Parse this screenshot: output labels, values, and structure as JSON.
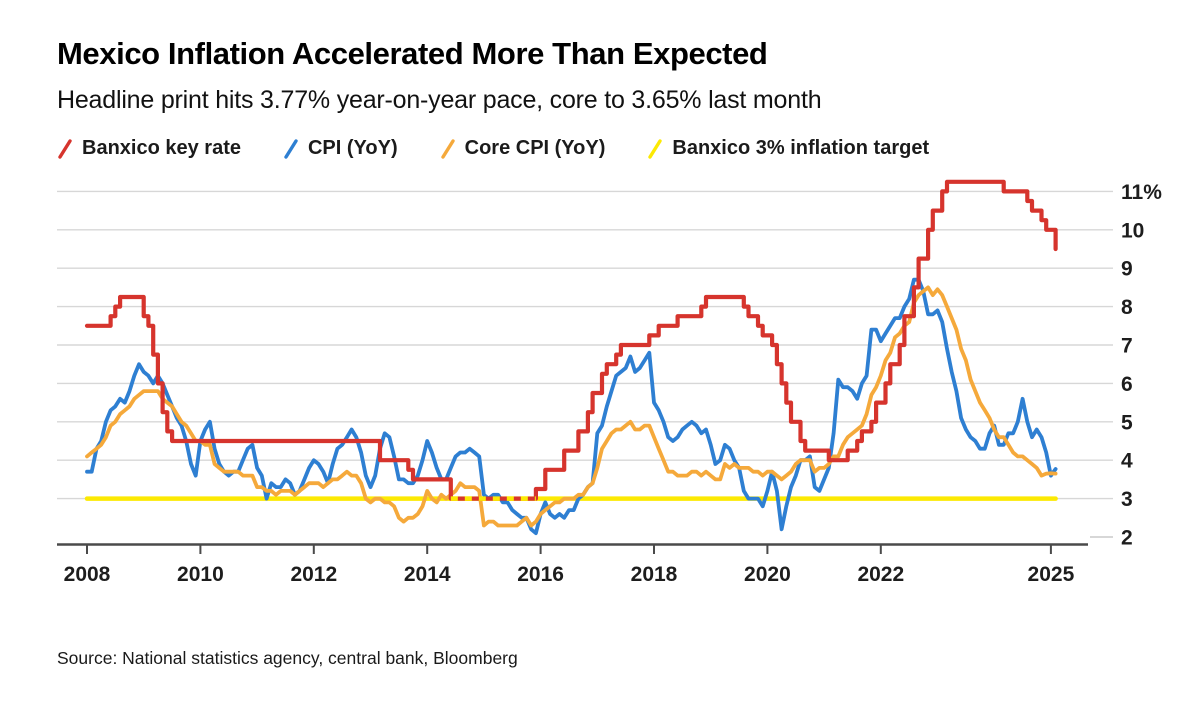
{
  "header": {
    "title": "Mexico Inflation Accelerated More Than Expected",
    "subtitle": "Headline print hits 3.77% year-on-year pace, core to 3.65% last month"
  },
  "legend": [
    {
      "label": "Banxico key rate",
      "color": "#d6342d",
      "icon": "red-slash-icon"
    },
    {
      "label": "CPI (YoY)",
      "color": "#2e7fd2",
      "icon": "blue-slash-icon"
    },
    {
      "label": "Core CPI (YoY)",
      "color": "#f5a93b",
      "icon": "orange-slash-icon"
    },
    {
      "label": "Banxico 3% inflation target",
      "color": "#fce903",
      "icon": "yellow-slash-icon"
    }
  ],
  "footer": {
    "source": "Source: National statistics agency, central bank, Bloomberg"
  },
  "chart_data": {
    "type": "line",
    "x_start_year": 2008,
    "x_months": 206,
    "x_tick_years": [
      2008,
      2010,
      2012,
      2014,
      2016,
      2018,
      2020,
      2022,
      2025
    ],
    "y_ticks": [
      2,
      3,
      4,
      5,
      6,
      7,
      8,
      9,
      10,
      11
    ],
    "y_top_label": "11%",
    "ylim": [
      2,
      11.4
    ],
    "grid": "horizontal",
    "legend_position": "top",
    "colors": {
      "grid": "#d7d7d7",
      "axis": "#4a4a4a",
      "text": "#1d1d1d"
    },
    "series": [
      {
        "name": "Banxico key rate",
        "slug": "banxico-key-rate",
        "color": "#d6342d",
        "style": "step",
        "values": [
          7.5,
          7.5,
          7.5,
          7.5,
          7.5,
          7.75,
          8.0,
          8.25,
          8.25,
          8.25,
          8.25,
          8.25,
          7.75,
          7.5,
          6.75,
          6.0,
          5.25,
          4.75,
          4.5,
          4.5,
          4.5,
          4.5,
          4.5,
          4.5,
          4.5,
          4.5,
          4.5,
          4.5,
          4.5,
          4.5,
          4.5,
          4.5,
          4.5,
          4.5,
          4.5,
          4.5,
          4.5,
          4.5,
          4.5,
          4.5,
          4.5,
          4.5,
          4.5,
          4.5,
          4.5,
          4.5,
          4.5,
          4.5,
          4.5,
          4.5,
          4.5,
          4.5,
          4.5,
          4.5,
          4.5,
          4.5,
          4.5,
          4.5,
          4.5,
          4.5,
          4.5,
          4.5,
          4.0,
          4.0,
          4.0,
          4.0,
          4.0,
          4.0,
          3.75,
          3.5,
          3.5,
          3.5,
          3.5,
          3.5,
          3.5,
          3.5,
          3.5,
          3.0,
          3.0,
          3.0,
          3.0,
          3.0,
          3.0,
          3.0,
          3.0,
          3.0,
          3.0,
          3.0,
          3.0,
          3.0,
          3.0,
          3.0,
          3.0,
          3.0,
          3.0,
          3.25,
          3.25,
          3.75,
          3.75,
          3.75,
          3.75,
          4.25,
          4.25,
          4.25,
          4.75,
          4.75,
          5.25,
          5.75,
          5.75,
          6.25,
          6.5,
          6.5,
          6.75,
          7.0,
          7.0,
          7.0,
          7.0,
          7.0,
          7.0,
          7.25,
          7.25,
          7.5,
          7.5,
          7.5,
          7.5,
          7.75,
          7.75,
          7.75,
          7.75,
          7.75,
          8.0,
          8.25,
          8.25,
          8.25,
          8.25,
          8.25,
          8.25,
          8.25,
          8.25,
          8.0,
          7.75,
          7.75,
          7.5,
          7.25,
          7.25,
          7.0,
          6.5,
          6.0,
          5.5,
          5.0,
          5.0,
          4.5,
          4.25,
          4.25,
          4.25,
          4.25,
          4.25,
          4.0,
          4.0,
          4.0,
          4.0,
          4.25,
          4.25,
          4.5,
          4.75,
          4.75,
          5.0,
          5.5,
          5.5,
          6.0,
          6.5,
          6.5,
          7.0,
          7.75,
          7.75,
          8.5,
          9.25,
          9.25,
          10.0,
          10.5,
          10.5,
          11.0,
          11.25,
          11.25,
          11.25,
          11.25,
          11.25,
          11.25,
          11.25,
          11.25,
          11.25,
          11.25,
          11.25,
          11.25,
          11.0,
          11.0,
          11.0,
          11.0,
          11.0,
          10.75,
          10.5,
          10.5,
          10.25,
          10.0,
          10.0,
          9.5
        ]
      },
      {
        "name": "CPI (YoY)",
        "slug": "cpi-yoy",
        "color": "#2e7fd2",
        "style": "line",
        "values": [
          3.7,
          3.7,
          4.3,
          4.5,
          5.0,
          5.3,
          5.4,
          5.6,
          5.5,
          5.8,
          6.2,
          6.5,
          6.3,
          6.2,
          6.0,
          6.2,
          6.0,
          5.7,
          5.4,
          5.1,
          4.9,
          4.5,
          3.9,
          3.6,
          4.5,
          4.8,
          5.0,
          4.3,
          3.9,
          3.7,
          3.6,
          3.7,
          3.7,
          4.0,
          4.3,
          4.4,
          3.8,
          3.6,
          3.0,
          3.4,
          3.3,
          3.3,
          3.5,
          3.4,
          3.1,
          3.2,
          3.5,
          3.8,
          4.0,
          3.9,
          3.7,
          3.4,
          3.9,
          4.3,
          4.4,
          4.6,
          4.8,
          4.6,
          4.2,
          3.6,
          3.3,
          3.6,
          4.3,
          4.7,
          4.6,
          4.1,
          3.5,
          3.5,
          3.4,
          3.4,
          3.6,
          4.0,
          4.5,
          4.2,
          3.8,
          3.5,
          3.5,
          3.8,
          4.1,
          4.2,
          4.2,
          4.3,
          4.2,
          4.1,
          3.1,
          3.0,
          3.1,
          3.1,
          2.9,
          2.9,
          2.7,
          2.6,
          2.5,
          2.5,
          2.2,
          2.1,
          2.6,
          2.9,
          2.6,
          2.5,
          2.6,
          2.5,
          2.7,
          2.7,
          3.0,
          3.1,
          3.3,
          3.4,
          4.7,
          4.9,
          5.4,
          5.8,
          6.2,
          6.3,
          6.4,
          6.7,
          6.3,
          6.4,
          6.6,
          6.8,
          5.5,
          5.3,
          5.0,
          4.6,
          4.5,
          4.6,
          4.8,
          4.9,
          5.0,
          4.9,
          4.7,
          4.8,
          4.4,
          3.9,
          4.0,
          4.4,
          4.3,
          4.0,
          3.8,
          3.2,
          3.0,
          3.0,
          3.0,
          2.8,
          3.2,
          3.7,
          3.2,
          2.2,
          2.8,
          3.3,
          3.6,
          4.0,
          4.0,
          4.1,
          3.3,
          3.2,
          3.5,
          3.8,
          4.7,
          6.1,
          5.9,
          5.9,
          5.8,
          5.6,
          6.0,
          6.2,
          7.4,
          7.4,
          7.1,
          7.3,
          7.5,
          7.7,
          7.7,
          8.0,
          8.2,
          8.7,
          8.7,
          8.4,
          7.8,
          7.8,
          7.9,
          7.6,
          6.9,
          6.3,
          5.8,
          5.1,
          4.8,
          4.6,
          4.5,
          4.3,
          4.3,
          4.7,
          4.9,
          4.4,
          4.4,
          4.7,
          4.7,
          5.0,
          5.6,
          5.0,
          4.6,
          4.8,
          4.6,
          4.2,
          3.6,
          3.77
        ]
      },
      {
        "name": "Core CPI (YoY)",
        "slug": "core-cpi-yoy",
        "color": "#f5a93b",
        "style": "line",
        "values": [
          4.1,
          4.2,
          4.3,
          4.4,
          4.6,
          4.9,
          5.0,
          5.2,
          5.3,
          5.4,
          5.6,
          5.7,
          5.8,
          5.8,
          5.8,
          5.8,
          5.6,
          5.5,
          5.4,
          5.2,
          5.0,
          4.9,
          4.7,
          4.5,
          4.5,
          4.4,
          4.4,
          3.9,
          3.8,
          3.7,
          3.7,
          3.7,
          3.7,
          3.6,
          3.6,
          3.6,
          3.3,
          3.3,
          3.2,
          3.2,
          3.1,
          3.2,
          3.2,
          3.2,
          3.1,
          3.2,
          3.3,
          3.4,
          3.4,
          3.4,
          3.3,
          3.4,
          3.5,
          3.5,
          3.6,
          3.7,
          3.6,
          3.6,
          3.4,
          3.0,
          2.9,
          3.0,
          3.0,
          2.9,
          2.9,
          2.8,
          2.5,
          2.4,
          2.5,
          2.5,
          2.6,
          2.8,
          3.2,
          3.0,
          2.9,
          3.1,
          3.0,
          3.1,
          3.2,
          3.4,
          3.3,
          3.3,
          3.3,
          3.2,
          2.3,
          2.4,
          2.4,
          2.3,
          2.3,
          2.3,
          2.3,
          2.3,
          2.4,
          2.5,
          2.3,
          2.4,
          2.6,
          2.7,
          2.8,
          2.9,
          2.9,
          3.0,
          3.0,
          3.0,
          3.1,
          3.1,
          3.3,
          3.4,
          3.8,
          4.3,
          4.5,
          4.7,
          4.8,
          4.8,
          4.9,
          5.0,
          4.8,
          4.8,
          4.9,
          4.9,
          4.6,
          4.3,
          4.0,
          3.7,
          3.7,
          3.6,
          3.6,
          3.6,
          3.7,
          3.7,
          3.6,
          3.7,
          3.6,
          3.5,
          3.5,
          3.9,
          3.8,
          3.9,
          3.8,
          3.8,
          3.8,
          3.7,
          3.7,
          3.6,
          3.7,
          3.7,
          3.6,
          3.5,
          3.6,
          3.7,
          3.9,
          4.0,
          4.0,
          4.0,
          3.7,
          3.8,
          3.8,
          3.9,
          4.1,
          4.1,
          4.4,
          4.6,
          4.7,
          4.8,
          4.9,
          5.2,
          5.7,
          5.9,
          6.2,
          6.6,
          6.8,
          7.2,
          7.3,
          7.5,
          7.6,
          8.1,
          8.3,
          8.4,
          8.5,
          8.3,
          8.45,
          8.3,
          8.0,
          7.7,
          7.4,
          6.9,
          6.6,
          6.1,
          5.8,
          5.5,
          5.3,
          5.1,
          4.8,
          4.6,
          4.6,
          4.4,
          4.2,
          4.1,
          4.1,
          4.0,
          3.9,
          3.8,
          3.6,
          3.65,
          3.66,
          3.65
        ]
      },
      {
        "name": "Banxico 3% inflation target",
        "slug": "inflation-target",
        "color": "#fce903",
        "style": "constant",
        "constant": 3.0
      }
    ]
  }
}
